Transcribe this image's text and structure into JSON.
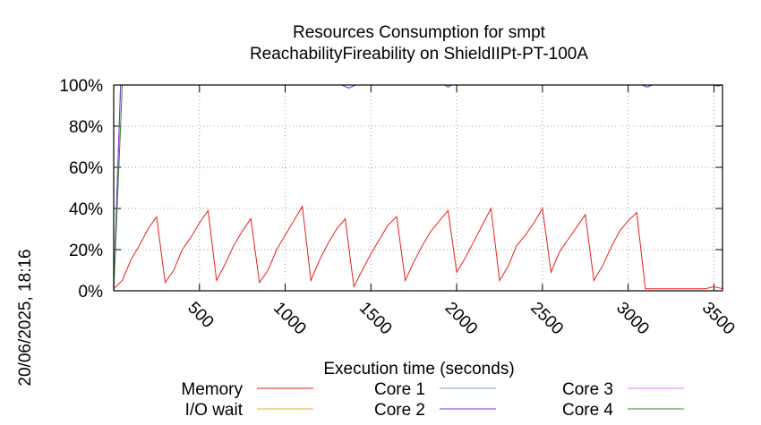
{
  "chart_data": {
    "type": "line",
    "title_line1": "Resources Consumption for smpt",
    "title_line2": "ReachabilityFireability on ShieldIIPt-PT-100A",
    "xlabel": "Execution time (seconds)",
    "ylabel": "",
    "timestamp": "20/06/2025, 18:16",
    "xlim": [
      0,
      3550
    ],
    "ylim": [
      0,
      100
    ],
    "x_ticks": [
      500,
      1000,
      1500,
      2000,
      2500,
      3000,
      3500
    ],
    "x_tick_labels": [
      "500",
      "1000",
      "1500",
      "2000",
      "2500",
      "3000",
      "3500"
    ],
    "y_ticks": [
      0,
      20,
      40,
      60,
      80,
      100
    ],
    "y_tick_labels": [
      "0%",
      "20%",
      "40%",
      "60%",
      "80%",
      "100%"
    ],
    "grid": true,
    "legend_position": "bottom",
    "series": [
      {
        "name": "Memory",
        "color": "#e8201c",
        "x": [
          0,
          50,
          100,
          150,
          200,
          250,
          300,
          350,
          400,
          450,
          500,
          550,
          600,
          650,
          700,
          750,
          800,
          850,
          900,
          950,
          1000,
          1050,
          1100,
          1150,
          1200,
          1250,
          1300,
          1350,
          1400,
          1450,
          1500,
          1550,
          1600,
          1650,
          1700,
          1750,
          1800,
          1850,
          1900,
          1950,
          2000,
          2050,
          2100,
          2150,
          2200,
          2250,
          2300,
          2350,
          2400,
          2450,
          2500,
          2550,
          2600,
          2650,
          2700,
          2750,
          2800,
          2850,
          2900,
          2950,
          3000,
          3050,
          3100,
          3150,
          3200,
          3250,
          3300,
          3350,
          3400,
          3450,
          3500,
          3550
        ],
        "y": [
          1,
          5,
          15,
          22,
          30,
          36,
          4,
          10,
          20,
          26,
          33,
          39,
          5,
          13,
          22,
          29,
          35,
          4,
          10,
          20,
          27,
          34,
          41,
          5,
          15,
          23,
          30,
          35,
          2,
          10,
          18,
          25,
          32,
          36,
          5,
          14,
          22,
          29,
          34,
          39,
          9,
          16,
          24,
          32,
          40,
          5,
          12,
          22,
          27,
          33,
          40,
          9,
          19,
          25,
          31,
          37,
          5,
          12,
          21,
          29,
          34,
          38,
          1,
          1,
          1,
          1,
          1,
          1,
          1,
          1,
          2,
          1
        ]
      },
      {
        "name": "I/O wait",
        "color": "#f5a623",
        "x": [
          0,
          3550
        ],
        "y": [
          0,
          0
        ]
      },
      {
        "name": "Core 1",
        "color": "#7f9fd7",
        "x": [
          0,
          40,
          60,
          3080,
          3110,
          3140,
          3550
        ],
        "y": [
          0,
          100,
          100,
          100,
          99,
          100,
          100
        ]
      },
      {
        "name": "Core 2",
        "color": "#7b2ed4",
        "x": [
          0,
          40,
          60,
          1330,
          1370,
          1410,
          1930,
          1950,
          1970,
          3080,
          3110,
          3140,
          3500,
          3520,
          3550
        ],
        "y": [
          0,
          100,
          100,
          100,
          98.5,
          100,
          100,
          99,
          100,
          100,
          99,
          100,
          100,
          99.5,
          100
        ]
      },
      {
        "name": "Core 3",
        "color": "#e87ee8",
        "x": [
          0,
          40,
          60,
          1330,
          1370,
          1410,
          1930,
          1950,
          1970,
          3550
        ],
        "y": [
          0,
          100,
          100,
          100,
          98.5,
          100,
          100,
          99,
          100,
          100
        ]
      },
      {
        "name": "Core 4",
        "color": "#2e8b2e",
        "x": [
          0,
          50,
          3550
        ],
        "y": [
          0,
          100,
          100
        ]
      }
    ]
  }
}
